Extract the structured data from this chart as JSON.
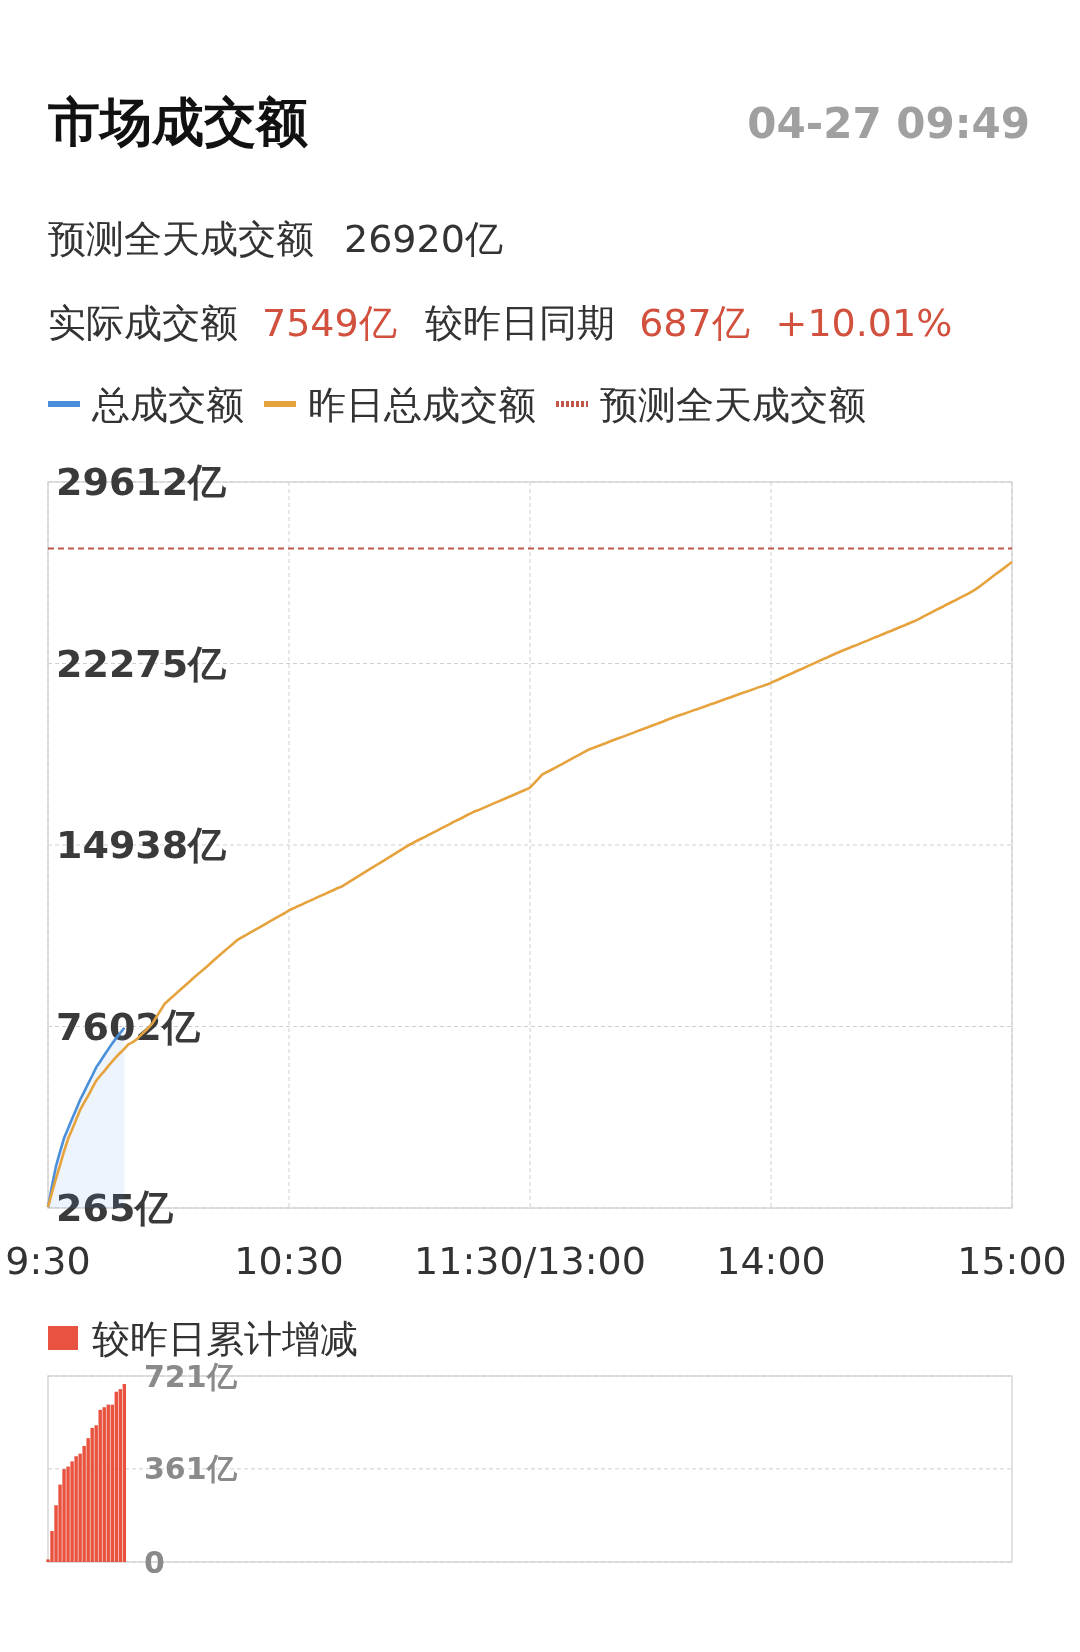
{
  "chart_data": [
    {
      "type": "line",
      "title": "市场成交额",
      "annotations": [
        "04-27 09:49",
        "预测全天成交额",
        "26920亿",
        "实际成交额",
        "7549亿",
        "较昨日同期",
        "687亿",
        "+10.01%"
      ],
      "categories": [
        "9:30",
        null,
        null,
        null,
        null,
        null,
        null,
        null,
        null,
        null,
        null,
        null,
        null,
        null,
        null,
        null,
        null,
        null,
        null,
        null,
        null,
        null,
        null,
        null,
        null,
        null,
        null,
        null,
        null,
        null,
        null,
        null,
        null,
        null,
        null,
        null,
        null,
        null,
        null,
        null,
        null,
        null,
        null,
        null,
        null,
        null,
        null,
        null,
        null,
        null,
        null,
        null,
        null,
        null,
        null,
        null,
        null,
        null,
        null,
        null,
        "10:30",
        null,
        null,
        null,
        null,
        null,
        null,
        null,
        null,
        null,
        null,
        null,
        null,
        null,
        null,
        null,
        null,
        null,
        null,
        null,
        null,
        null,
        null,
        null,
        null,
        null,
        null,
        null,
        null,
        null,
        null,
        null,
        null,
        null,
        null,
        null,
        null,
        null,
        null,
        null,
        null,
        null,
        null,
        null,
        null,
        null,
        null,
        null,
        null,
        null,
        null,
        null,
        null,
        null,
        null,
        null,
        null,
        null,
        null,
        null,
        "11:30/13:00",
        null,
        null,
        null,
        null,
        null,
        null,
        null,
        null,
        null,
        null,
        null,
        null,
        null,
        null,
        null,
        null,
        null,
        null,
        null,
        null,
        null,
        null,
        null,
        null,
        null,
        null,
        null,
        null,
        null,
        null,
        null,
        null,
        null,
        null,
        null,
        null,
        null,
        null,
        null,
        null,
        null,
        null,
        null,
        null,
        null,
        null,
        null,
        null,
        null,
        null,
        null,
        null,
        null,
        null,
        null,
        null,
        null,
        null,
        null,
        "14:00",
        null,
        null,
        null,
        null,
        null,
        null,
        null,
        null,
        null,
        null,
        null,
        null,
        null,
        null,
        null,
        null,
        null,
        null,
        null,
        null,
        null,
        null,
        null,
        null,
        null,
        null,
        null,
        null,
        null,
        null,
        null,
        null,
        null,
        null,
        null,
        null,
        null,
        null,
        null,
        null,
        null,
        null,
        null,
        null,
        null,
        null,
        null,
        null,
        null,
        null,
        null,
        null,
        null,
        null,
        null,
        null,
        null,
        null,
        null,
        "15:00"
      ],
      "ylim": [
        265,
        29612
      ],
      "yticks": [
        {
          "value": 265,
          "label": "265亿"
        },
        {
          "value": 7602,
          "label": "7602亿"
        },
        {
          "value": 14938,
          "label": "14938亿"
        },
        {
          "value": 22275,
          "label": "22275亿"
        },
        {
          "value": 29612,
          "label": "29612亿"
        }
      ],
      "grid": true,
      "legend": "top left",
      "ref_lines": [
        {
          "axis": "y",
          "value": 26920,
          "label": "预测全天成交额",
          "color": "#c0574a",
          "line_style": "dashed"
        }
      ],
      "series": [
        {
          "name": "总成交额",
          "type": "area",
          "color": "#4a8fd9",
          "values": [
            300,
            1160,
            1960,
            2540,
            3090,
            3480,
            3870,
            4250,
            4640,
            4960,
            5290,
            5610,
            5950,
            6190,
            6440,
            6680,
            6920,
            7140,
            7340,
            7550,
            null,
            null,
            null,
            null,
            null,
            null,
            null,
            null,
            null,
            null,
            null,
            null,
            null,
            null,
            null,
            null,
            null,
            null,
            null,
            null,
            null,
            null,
            null,
            null,
            null,
            null,
            null,
            null,
            null,
            null,
            null,
            null,
            null,
            null,
            null,
            null,
            null,
            null,
            null,
            null,
            null,
            null,
            null,
            null,
            null,
            null,
            null,
            null,
            null,
            null,
            null,
            null,
            null,
            null,
            null,
            null,
            null,
            null,
            null,
            null,
            null,
            null,
            null,
            null,
            null,
            null,
            null,
            null,
            null,
            null,
            null,
            null,
            null,
            null,
            null,
            null,
            null,
            null,
            null,
            null,
            null,
            null,
            null,
            null,
            null,
            null,
            null,
            null,
            null,
            null,
            null,
            null,
            null,
            null,
            null,
            null,
            null,
            null,
            null,
            null,
            null,
            null,
            null,
            null,
            null,
            null,
            null,
            null,
            null,
            null,
            null,
            null,
            null,
            null,
            null,
            null,
            null,
            null,
            null,
            null,
            null,
            null,
            null,
            null,
            null,
            null,
            null,
            null,
            null,
            null,
            null,
            null,
            null,
            null,
            null,
            null,
            null,
            null,
            null,
            null,
            null,
            null,
            null,
            null,
            null,
            null,
            null,
            null,
            null,
            null,
            null,
            null,
            null,
            null,
            null,
            null,
            null,
            null,
            null,
            null,
            null,
            null,
            null,
            null,
            null,
            null,
            null,
            null,
            null,
            null,
            null,
            null,
            null,
            null,
            null,
            null,
            null,
            null,
            null,
            null,
            null,
            null,
            null,
            null,
            null,
            null,
            null,
            null,
            null,
            null,
            null,
            null,
            null,
            null,
            null,
            null,
            null,
            null,
            null,
            null,
            null,
            null,
            null,
            null,
            null,
            null,
            null,
            null,
            null,
            null,
            null,
            null,
            null,
            null,
            null,
            null,
            null,
            null,
            null,
            null,
            null
          ]
        },
        {
          "name": "昨日总成交额",
          "type": "line",
          "color": "#e6a23c",
          "values": [
            300,
            900,
            1460,
            2000,
            2560,
            3060,
            3440,
            3830,
            4230,
            4520,
            4810,
            5110,
            5410,
            5610,
            5800,
            6000,
            6190,
            6370,
            6540,
            6700,
            6880,
            6960,
            7070,
            7230,
            7390,
            7540,
            7730,
            7990,
            8250,
            8510,
            8660,
            8800,
            8950,
            9100,
            9240,
            9380,
            9530,
            9670,
            9810,
            9950,
            10090,
            10240,
            10380,
            10520,
            10660,
            10800,
            10940,
            11080,
            11180,
            11270,
            11370,
            11460,
            11550,
            11640,
            11730,
            11830,
            11920,
            12010,
            12100,
            12190,
            12300,
            12370,
            12450,
            12520,
            12600,
            12670,
            12740,
            12820,
            12890,
            12960,
            13040,
            13110,
            13190,
            13250,
            13350,
            13450,
            13550,
            13650,
            13750,
            13850,
            13950,
            14050,
            14150,
            14250,
            14350,
            14450,
            14550,
            14650,
            14750,
            14850,
            14950,
            15030,
            15120,
            15200,
            15280,
            15370,
            15450,
            15530,
            15620,
            15700,
            15780,
            15870,
            15950,
            16030,
            16120,
            16200,
            16280,
            16340,
            16410,
            16480,
            16550,
            16620,
            16690,
            16760,
            16830,
            16900,
            16970,
            17040,
            17110,
            17180,
            17260,
            17430,
            17600,
            17780,
            17870,
            17950,
            18040,
            18130,
            18210,
            18300,
            18390,
            18480,
            18560,
            18650,
            18740,
            18820,
            18880,
            18940,
            19000,
            19060,
            19130,
            19190,
            19250,
            19310,
            19370,
            19430,
            19490,
            19560,
            19620,
            19680,
            19740,
            19800,
            19860,
            19920,
            19990,
            20050,
            20110,
            20170,
            20220,
            20280,
            20340,
            20400,
            20450,
            20510,
            20570,
            20630,
            20680,
            20740,
            20800,
            20860,
            20910,
            20970,
            21030,
            21090,
            21140,
            21200,
            21260,
            21320,
            21370,
            21430,
            21490,
            21570,
            21640,
            21720,
            21790,
            21860,
            21940,
            22010,
            22080,
            22160,
            22230,
            22300,
            22380,
            22450,
            22520,
            22600,
            22670,
            22740,
            22810,
            22870,
            22940,
            23000,
            23070,
            23140,
            23200,
            23270,
            23340,
            23400,
            23470,
            23540,
            23600,
            23670,
            23740,
            23800,
            23870,
            23940,
            24010,
            24090,
            24180,
            24260,
            24340,
            24430,
            24510,
            24590,
            24680,
            24760,
            24840,
            24930,
            25010,
            25090,
            25180,
            25280,
            25400,
            25520,
            25640,
            25770,
            25890,
            26010,
            26130,
            26260,
            26380
          ]
        }
      ]
    },
    {
      "type": "bar",
      "categories": [
        null,
        null,
        null,
        null,
        null,
        null,
        null,
        null,
        null,
        null,
        null,
        null,
        null,
        null,
        null,
        null,
        null,
        null,
        null,
        null,
        null,
        null,
        null,
        null,
        null,
        null,
        null,
        null,
        null,
        null,
        null,
        null,
        null,
        null,
        null,
        null,
        null,
        null,
        null,
        null,
        null,
        null,
        null,
        null,
        null,
        null,
        null,
        null,
        null,
        null,
        null,
        null,
        null,
        null,
        null,
        null,
        null,
        null,
        null,
        null,
        null,
        null,
        null,
        null,
        null,
        null,
        null,
        null,
        null,
        null,
        null,
        null,
        null,
        null,
        null,
        null,
        null,
        null,
        null,
        null,
        null,
        null,
        null,
        null,
        null,
        null,
        null,
        null,
        null,
        null,
        null,
        null,
        null,
        null,
        null,
        null,
        null,
        null,
        null,
        null,
        null,
        null,
        null,
        null,
        null,
        null,
        null,
        null,
        null,
        null,
        null,
        null,
        null,
        null,
        null,
        null,
        null,
        null,
        null,
        null,
        null,
        null,
        null,
        null,
        null,
        null,
        null,
        null,
        null,
        null,
        null,
        null,
        null,
        null,
        null,
        null,
        null,
        null,
        null,
        null,
        null,
        null,
        null,
        null,
        null,
        null,
        null,
        null,
        null,
        null,
        null,
        null,
        null,
        null,
        null,
        null,
        null,
        null,
        null,
        null,
        null,
        null,
        null,
        null,
        null,
        null,
        null,
        null,
        null,
        null,
        null,
        null,
        null,
        null,
        null,
        null,
        null,
        null,
        null,
        null,
        null,
        null,
        null,
        null,
        null,
        null,
        null,
        null,
        null,
        null,
        null,
        null,
        null,
        null,
        null,
        null,
        null,
        null,
        null,
        null,
        null,
        null,
        null,
        null,
        null,
        null,
        null,
        null,
        null,
        null,
        null,
        null,
        null,
        null,
        null,
        null,
        null,
        null,
        null,
        null,
        null,
        null,
        null,
        null,
        null,
        null,
        null,
        null,
        null,
        null,
        null,
        null,
        null,
        null,
        null,
        null,
        null,
        null,
        null,
        null,
        null
      ],
      "ylim": [
        0,
        721
      ],
      "yticks": [
        {
          "value": 0,
          "label": "0"
        },
        {
          "value": 361,
          "label": "361亿"
        },
        {
          "value": 721,
          "label": "721亿"
        }
      ],
      "grid": "y",
      "tick_labels": "y",
      "legend": "top left",
      "series": [
        {
          "name": "较昨日累计增减",
          "color": "#e8523f",
          "values": [
            10,
            120,
            220,
            300,
            360,
            370,
            390,
            410,
            420,
            450,
            480,
            520,
            530,
            590,
            600,
            610,
            610,
            660,
            670,
            690,
            null,
            null,
            null,
            null,
            null,
            null,
            null,
            null,
            null,
            null,
            null,
            null,
            null,
            null,
            null,
            null,
            null,
            null,
            null,
            null,
            null,
            null,
            null,
            null,
            null,
            null,
            null,
            null,
            null,
            null,
            null,
            null,
            null,
            null,
            null,
            null,
            null,
            null,
            null,
            null,
            null,
            null,
            null,
            null,
            null,
            null,
            null,
            null,
            null,
            null,
            null,
            null,
            null,
            null,
            null,
            null,
            null,
            null,
            null,
            null,
            null,
            null,
            null,
            null,
            null,
            null,
            null,
            null,
            null,
            null,
            null,
            null,
            null,
            null,
            null,
            null,
            null,
            null,
            null,
            null,
            null,
            null,
            null,
            null,
            null,
            null,
            null,
            null,
            null,
            null,
            null,
            null,
            null,
            null,
            null,
            null,
            null,
            null,
            null,
            null,
            null,
            null,
            null,
            null,
            null,
            null,
            null,
            null,
            null,
            null,
            null,
            null,
            null,
            null,
            null,
            null,
            null,
            null,
            null,
            null,
            null,
            null,
            null,
            null,
            null,
            null,
            null,
            null,
            null,
            null,
            null,
            null,
            null,
            null,
            null,
            null,
            null,
            null,
            null,
            null,
            null,
            null,
            null,
            null,
            null,
            null,
            null,
            null,
            null,
            null,
            null,
            null,
            null,
            null,
            null,
            null,
            null,
            null,
            null,
            null,
            null,
            null,
            null,
            null,
            null,
            null,
            null,
            null,
            null,
            null,
            null,
            null,
            null,
            null,
            null,
            null,
            null,
            null,
            null,
            null,
            null,
            null,
            null,
            null,
            null,
            null,
            null,
            null,
            null,
            null,
            null,
            null,
            null,
            null,
            null,
            null,
            null,
            null,
            null,
            null,
            null,
            null,
            null,
            null,
            null,
            null,
            null,
            null,
            null,
            null,
            null,
            null,
            null,
            null,
            null,
            null,
            null,
            null,
            null,
            null,
            null
          ]
        }
      ]
    }
  ]
}
